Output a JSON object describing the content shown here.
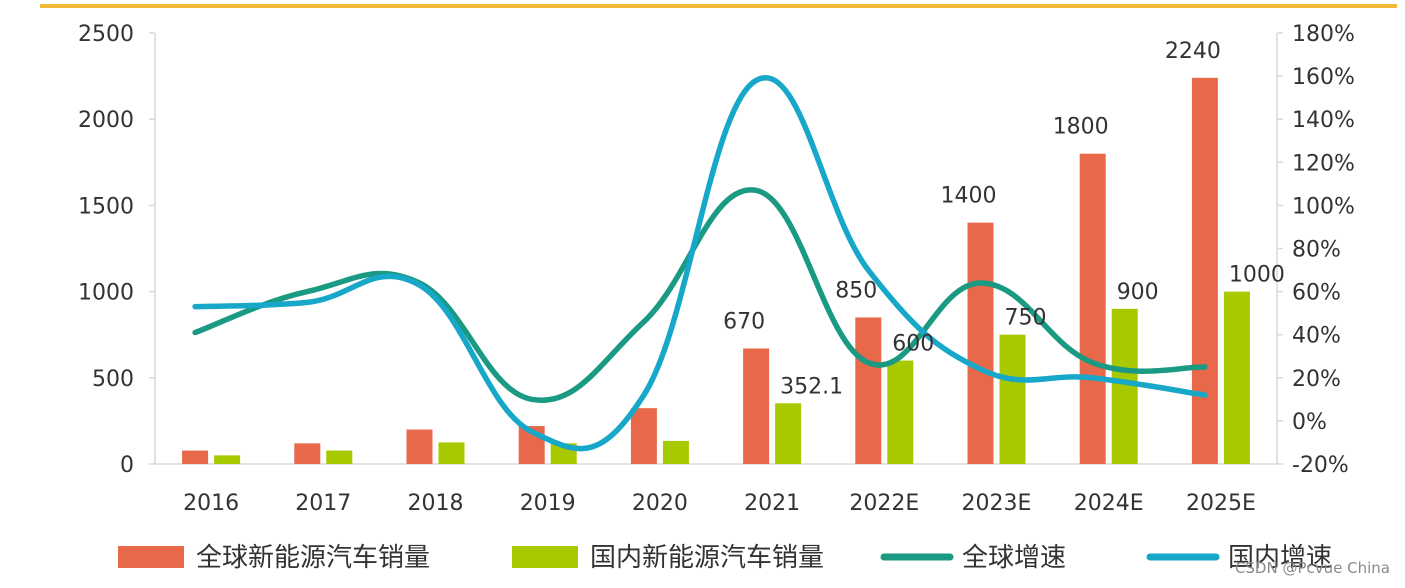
{
  "chart_data": {
    "type": "bar",
    "categories": [
      "2016",
      "2017",
      "2018",
      "2019",
      "2020",
      "2021",
      "2022E",
      "2023E",
      "2024E",
      "2025E"
    ],
    "series": [
      {
        "name": "全球新能源汽车销量",
        "kind": "bar",
        "axis": "left",
        "color": "#e8694a",
        "values": [
          78,
          120,
          200,
          220,
          324,
          670,
          850,
          1400,
          1800,
          2240
        ]
      },
      {
        "name": "国内新能源汽车销量",
        "kind": "bar",
        "axis": "left",
        "color": "#a8c800",
        "values": [
          50,
          78,
          125,
          120,
          134,
          352.1,
          600,
          750,
          900,
          1000
        ]
      },
      {
        "name": "全球增速",
        "kind": "line",
        "axis": "right",
        "color": "#1a9a82",
        "values": [
          41,
          60,
          64,
          10,
          46,
          107,
          27,
          64,
          27,
          25
        ]
      },
      {
        "name": "国内增速",
        "kind": "line",
        "axis": "right",
        "color": "#17a7c8",
        "values": [
          53,
          55,
          63,
          -5,
          12,
          158,
          70,
          24,
          20,
          12
        ]
      }
    ],
    "data_labels": [
      {
        "series": 0,
        "index": 5,
        "text": "670"
      },
      {
        "series": 1,
        "index": 5,
        "text": "352.1"
      },
      {
        "series": 0,
        "index": 6,
        "text": "850"
      },
      {
        "series": 1,
        "index": 6,
        "text": "600"
      },
      {
        "series": 0,
        "index": 7,
        "text": "1400"
      },
      {
        "series": 1,
        "index": 7,
        "text": "750"
      },
      {
        "series": 0,
        "index": 8,
        "text": "1800"
      },
      {
        "series": 1,
        "index": 8,
        "text": "900"
      },
      {
        "series": 0,
        "index": 9,
        "text": "2240"
      },
      {
        "series": 1,
        "index": 9,
        "text": "1000"
      }
    ],
    "y_left": {
      "min": 0,
      "max": 2500,
      "ticks": [
        "0",
        "500",
        "1000",
        "1500",
        "2000",
        "2500"
      ]
    },
    "y_right": {
      "min": -20,
      "max": 180,
      "ticks": [
        "-20%",
        "0%",
        "20%",
        "40%",
        "60%",
        "80%",
        "100%",
        "120%",
        "140%",
        "160%",
        "180%"
      ]
    },
    "legend_position": "bottom",
    "grid": false,
    "top_rule_color": "#f0b93a",
    "axis_color": "#d9d9d9"
  },
  "watermark": "CSDN @Pcvue China"
}
